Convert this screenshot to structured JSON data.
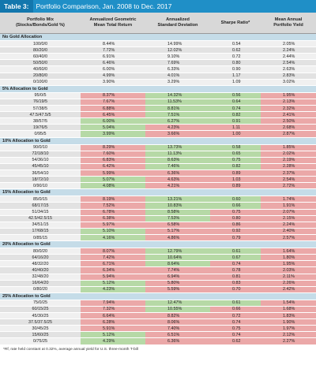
{
  "title": {
    "tag": "Table 3:",
    "text": "Portfolio Comparison, Jan. 2008 to Dec. 2017"
  },
  "headers": [
    "Portfolio Mix\n(Stocks/Bonds/Gold %)",
    "Annualized Geometric\nMean Total Return",
    "Annualized\nStandard Deviation",
    "Sharpe Ratio*",
    "Mean Annual\nPortfolio Yield"
  ],
  "sections": [
    {
      "label": "No Gold Allocation",
      "rows": [
        {
          "cells": [
            "100/0/0",
            "8.44%",
            "14.99%",
            "0.54",
            "2.05%"
          ],
          "colors": [
            "",
            "",
            "",
            "",
            ""
          ]
        },
        {
          "cells": [
            "80/20/0",
            "7.72%",
            "12.02%",
            "0.62",
            "2.24%"
          ],
          "colors": [
            "",
            "",
            "",
            "",
            ""
          ]
        },
        {
          "cells": [
            "60/40/0",
            "6.91%",
            "9.10%",
            "0.72",
            "2.44%"
          ],
          "colors": [
            "",
            "",
            "",
            "",
            ""
          ]
        },
        {
          "cells": [
            "50/50/0",
            "6.46%",
            "7.69%",
            "0.80",
            "2.54%"
          ],
          "colors": [
            "",
            "",
            "",
            "",
            ""
          ]
        },
        {
          "cells": [
            "40/60/0",
            "6.00%",
            "6.33%",
            "0.90",
            "2.63%"
          ],
          "colors": [
            "",
            "",
            "",
            "",
            ""
          ]
        },
        {
          "cells": [
            "20/80/0",
            "4.99%",
            "4.01%",
            "1.17",
            "2.83%"
          ],
          "colors": [
            "",
            "",
            "",
            "",
            ""
          ]
        },
        {
          "cells": [
            "0/100/0",
            "3.90%",
            "3.29%",
            "1.09",
            "3.02%"
          ],
          "colors": [
            "",
            "",
            "",
            "",
            ""
          ]
        }
      ]
    },
    {
      "label": "5% Allocation to Gold",
      "rows": [
        {
          "cells": [
            "95/0/5",
            "8.37%",
            "14.32%",
            "0.56",
            "1.95%"
          ],
          "colors": [
            "",
            "red",
            "green",
            "green",
            "red"
          ]
        },
        {
          "cells": [
            "76/19/5",
            "7.67%",
            "11.53%",
            "0.64",
            "2.13%"
          ],
          "colors": [
            "",
            "red",
            "green",
            "green",
            "red"
          ]
        },
        {
          "cells": [
            "57/38/5",
            "6.88%",
            "8.81%",
            "0.74",
            "2.32%"
          ],
          "colors": [
            "",
            "red",
            "green",
            "green",
            "red"
          ]
        },
        {
          "cells": [
            "47.5/47.5/5",
            "6.45%",
            "7.51%",
            "0.82",
            "2.41%"
          ],
          "colors": [
            "",
            "red",
            "green",
            "green",
            "red"
          ]
        },
        {
          "cells": [
            "38/57/5",
            "6.00%",
            "6.27%",
            "0.91",
            "2.50%"
          ],
          "colors": [
            "",
            "green",
            "green",
            "green",
            "red"
          ]
        },
        {
          "cells": [
            "19/76/5",
            "5.04%",
            "4.23%",
            "1.11",
            "2.68%"
          ],
          "colors": [
            "",
            "green",
            "red",
            "red",
            "red"
          ]
        },
        {
          "cells": [
            "0/95/5",
            "3.99%",
            "3.66%",
            "1.00",
            "2.87%"
          ],
          "colors": [
            "",
            "green",
            "red",
            "red",
            "red"
          ]
        }
      ]
    },
    {
      "label": "10% Allocation to Gold",
      "rows": [
        {
          "cells": [
            "90/0/10",
            "8.29%",
            "13.73%",
            "0.58",
            "1.85%"
          ],
          "colors": [
            "",
            "red",
            "green",
            "green",
            "red"
          ]
        },
        {
          "cells": [
            "72/18/10",
            "7.60%",
            "11.13%",
            "0.65",
            "2.02%"
          ],
          "colors": [
            "",
            "red",
            "green",
            "green",
            "red"
          ]
        },
        {
          "cells": [
            "54/36/10",
            "6.83%",
            "8.63%",
            "0.75",
            "2.19%"
          ],
          "colors": [
            "",
            "red",
            "green",
            "green",
            "red"
          ]
        },
        {
          "cells": [
            "45/45/10",
            "6.42%",
            "7.46%",
            "0.82",
            "2.28%"
          ],
          "colors": [
            "",
            "red",
            "green",
            "green",
            "red"
          ]
        },
        {
          "cells": [
            "36/54/10",
            "5.99%",
            "6.36%",
            "0.89",
            "2.37%"
          ],
          "colors": [
            "",
            "red",
            "red",
            "red",
            "red"
          ]
        },
        {
          "cells": [
            "18/72/10",
            "5.07%",
            "4.63%",
            "1.03",
            "2.54%"
          ],
          "colors": [
            "",
            "green",
            "red",
            "red",
            "red"
          ]
        },
        {
          "cells": [
            "0/90/10",
            "4.08%",
            "4.21%",
            "0.89",
            "2.72%"
          ],
          "colors": [
            "",
            "green",
            "red",
            "red",
            "red"
          ]
        }
      ]
    },
    {
      "label": "15% Allocation to Gold",
      "rows": [
        {
          "cells": [
            "85/0/15",
            "8.19%",
            "13.21%",
            "0.60",
            "1.74%"
          ],
          "colors": [
            "",
            "red",
            "green",
            "green",
            "red"
          ]
        },
        {
          "cells": [
            "68/17/15",
            "7.52%",
            "10.83%",
            "0.66",
            "1.91%"
          ],
          "colors": [
            "",
            "red",
            "green",
            "green",
            "red"
          ]
        },
        {
          "cells": [
            "51/34/15",
            "6.78%",
            "8.58%",
            "0.75",
            "2.07%"
          ],
          "colors": [
            "",
            "red",
            "green",
            "red",
            "red"
          ]
        },
        {
          "cells": [
            "42.5/42.5/15",
            "6.38%",
            "7.53%",
            "0.80",
            "2.15%"
          ],
          "colors": [
            "",
            "red",
            "green",
            "red",
            "red"
          ]
        },
        {
          "cells": [
            "34/51/15",
            "5.97%",
            "6.58%",
            "0.86",
            "2.24%"
          ],
          "colors": [
            "",
            "red",
            "red",
            "red",
            "red"
          ]
        },
        {
          "cells": [
            "17/68/15",
            "5.10%",
            "5.17%",
            "0.92",
            "2.40%"
          ],
          "colors": [
            "",
            "green",
            "red",
            "red",
            "red"
          ]
        },
        {
          "cells": [
            "0/85/15",
            "4.16%",
            "4.86%",
            "0.79",
            "2.57%"
          ],
          "colors": [
            "",
            "green",
            "red",
            "red",
            "red"
          ]
        }
      ]
    },
    {
      "label": "20% Allocation to Gold",
      "rows": [
        {
          "cells": [
            "80/0/20",
            "8.07%",
            "12.79%",
            "0.61",
            "1.64%"
          ],
          "colors": [
            "",
            "red",
            "green",
            "green",
            "red"
          ]
        },
        {
          "cells": [
            "64/16/20",
            "7.42%",
            "10.64%",
            "0.67",
            "1.80%"
          ],
          "colors": [
            "",
            "red",
            "green",
            "green",
            "red"
          ]
        },
        {
          "cells": [
            "48/32/20",
            "6.71%",
            "8.64%",
            "0.74",
            "1.95%"
          ],
          "colors": [
            "",
            "red",
            "green",
            "red",
            "red"
          ]
        },
        {
          "cells": [
            "40/40/20",
            "6.34%",
            "7.74%",
            "0.78",
            "2.03%"
          ],
          "colors": [
            "",
            "red",
            "red",
            "red",
            "red"
          ]
        },
        {
          "cells": [
            "32/48/20",
            "5.94%",
            "6.94%",
            "0.81",
            "2.11%"
          ],
          "colors": [
            "",
            "red",
            "red",
            "red",
            "red"
          ]
        },
        {
          "cells": [
            "16/64/20",
            "5.12%",
            "5.80%",
            "0.83",
            "2.26%"
          ],
          "colors": [
            "",
            "green",
            "red",
            "red",
            "red"
          ]
        },
        {
          "cells": [
            "0/80/20",
            "4.23%",
            "5.59%",
            "0.70",
            "2.42%"
          ],
          "colors": [
            "",
            "green",
            "red",
            "red",
            "red"
          ]
        }
      ]
    },
    {
      "label": "25% Allocation to Gold",
      "rows": [
        {
          "cells": [
            "75/0/25",
            "7.94%",
            "12.47%",
            "0.61",
            "1.54%"
          ],
          "colors": [
            "",
            "red",
            "green",
            "green",
            "red"
          ]
        },
        {
          "cells": [
            "60/15/25",
            "7.32%",
            "10.55%",
            "0.66",
            "1.68%"
          ],
          "colors": [
            "",
            "red",
            "green",
            "red",
            "red"
          ]
        },
        {
          "cells": [
            "45/30/25",
            "6.64%",
            "8.82%",
            "0.72",
            "1.83%"
          ],
          "colors": [
            "",
            "red",
            "red",
            "red",
            "red"
          ]
        },
        {
          "cells": [
            "37.5/37.5/25",
            "6.28%",
            "8.06%",
            "0.74",
            "1.90%"
          ],
          "colors": [
            "",
            "red",
            "red",
            "red",
            "red"
          ]
        },
        {
          "cells": [
            "30/45/25",
            "5.91%",
            "7.40%",
            "0.75",
            "1.97%"
          ],
          "colors": [
            "",
            "red",
            "red",
            "red",
            "red"
          ]
        },
        {
          "cells": [
            "15/60/25",
            "5.12%",
            "6.51%",
            "0.74",
            "2.12%"
          ],
          "colors": [
            "",
            "green",
            "red",
            "red",
            "red"
          ]
        },
        {
          "cells": [
            "0/75/25",
            "4.29%",
            "6.36%",
            "0.62",
            "2.27%"
          ],
          "colors": [
            "",
            "green",
            "red",
            "red",
            "red"
          ]
        }
      ]
    }
  ],
  "footnote": "*Rf, rate held constant at 0.32%, average annual yield for U.S. three-month T-bill"
}
